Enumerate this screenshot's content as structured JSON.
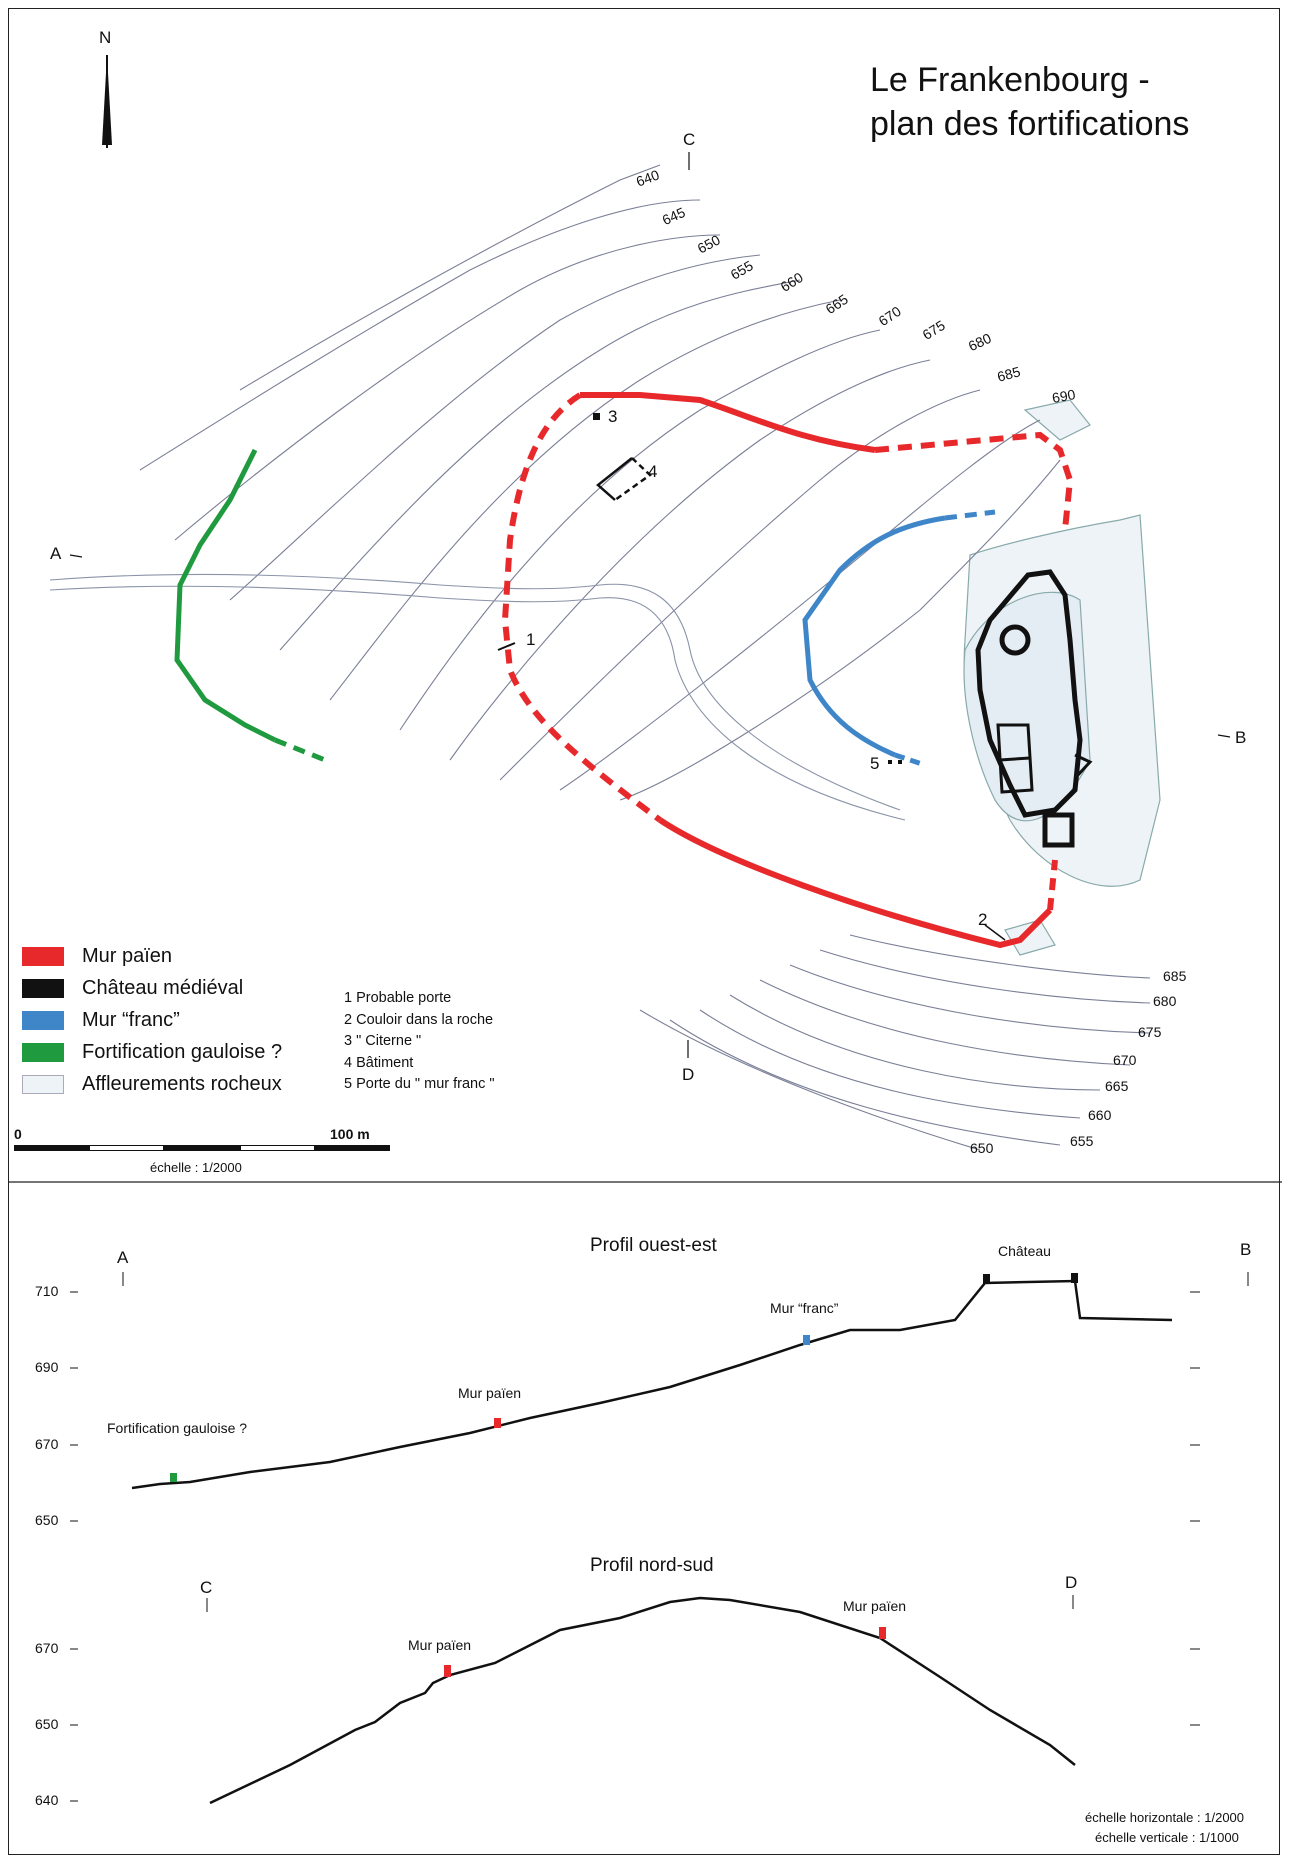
{
  "title": [
    "Le Frankenbourg -",
    "plan des fortifications"
  ],
  "north_label": "N",
  "colors": {
    "mur_paien": "#e8292c",
    "chateau": "#111111",
    "mur_franc": "#3f86c9",
    "gauloise": "#1f9a3f",
    "rock": "#eef3f7",
    "contour": "#7a7f96"
  },
  "section_marks": {
    "A": "A",
    "B": "B",
    "C": "C",
    "D": "D"
  },
  "contours_top": [
    "640",
    "645",
    "650",
    "655",
    "660",
    "665",
    "670",
    "675",
    "680",
    "685",
    "690"
  ],
  "contours_bottom": [
    "685",
    "680",
    "675",
    "670",
    "665",
    "660",
    "655",
    "650"
  ],
  "point_numbers": [
    "1",
    "2",
    "3",
    "4",
    "5"
  ],
  "legend": [
    {
      "label": "Mur païen",
      "color_key": "mur_paien"
    },
    {
      "label": "Château médiéval",
      "color_key": "chateau"
    },
    {
      "label": "Mur “franc”",
      "color_key": "mur_franc"
    },
    {
      "label": "Fortification gauloise ?",
      "color_key": "gauloise"
    },
    {
      "label": "Affleurements rocheux",
      "color_key": "rock"
    }
  ],
  "notes": [
    "1 Probable porte",
    "2 Couloir dans la roche",
    "3 \" Citerne \"",
    "4 Bâtiment",
    "5 Porte du \" mur franc \""
  ],
  "scale": {
    "start": "0",
    "end": "100 m",
    "caption": "échelle : 1/2000"
  },
  "profile_we": {
    "title": "Profil ouest-est",
    "y_ticks": [
      "710",
      "690",
      "670",
      "650"
    ],
    "labels": {
      "gauloise": "Fortification gauloise ?",
      "paien": "Mur païen",
      "franc": "Mur “franc”",
      "chateau": "Château"
    }
  },
  "profile_ns": {
    "title": "Profil nord-sud",
    "y_ticks": [
      "670",
      "650",
      "640"
    ],
    "labels": {
      "paien_left": "Mur païen",
      "paien_right": "Mur païen"
    }
  },
  "scale_notes": [
    "échelle horizontale : 1/2000",
    "échelle verticale : 1/1000"
  ]
}
